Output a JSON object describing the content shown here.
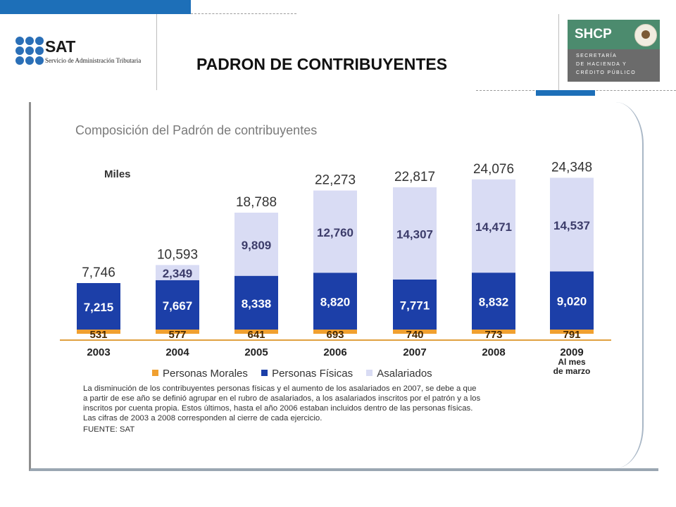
{
  "header": {
    "page_title": "PADRON DE CONTRIBUYENTES",
    "sat": {
      "name": "SAT",
      "subtitle": "Servicio de Administración Tributaria"
    },
    "shcp": {
      "name": "SHCP",
      "lines": [
        "SECRETARÍA",
        "DE HACIENDA Y",
        "CRÉDITO PÚBLICO"
      ]
    }
  },
  "chart_data": {
    "type": "bar",
    "stacked": true,
    "title": "Composición del Padrón de contribuyentes",
    "unit_label": "Miles",
    "categories": [
      "2003",
      "2004",
      "2005",
      "2006",
      "2007",
      "2008",
      "2009"
    ],
    "category_sublabels": [
      "",
      "",
      "",
      "",
      "",
      "",
      "Al mes de marzo"
    ],
    "series": [
      {
        "name": "Personas Morales",
        "color": "#f0a030",
        "values": [
          531,
          577,
          641,
          693,
          740,
          773,
          791
        ]
      },
      {
        "name": "Personas Físicas",
        "color": "#1c3fa8",
        "values": [
          7215,
          7667,
          8338,
          8820,
          7771,
          8832,
          9020
        ]
      },
      {
        "name": "Asalariados",
        "color": "#d9dcf4",
        "values": [
          null,
          2349,
          9809,
          12760,
          14307,
          14471,
          14537
        ]
      }
    ],
    "totals": [
      7746,
      10593,
      18788,
      22273,
      22817,
      24076,
      24348
    ],
    "value_labels": {
      "totals": [
        "7,746",
        "10,593",
        "18,788",
        "22,273",
        "22,817",
        "24,076",
        "24,348"
      ],
      "Personas Morales": [
        "531",
        "577",
        "641",
        "693",
        "740",
        "773",
        "791"
      ],
      "Personas Físicas": [
        "7,215",
        "7,667",
        "8,338",
        "8,820",
        "7,771",
        "8,832",
        "9,020"
      ],
      "Asalariados": [
        "",
        "2,349",
        "9,809",
        "12,760",
        "14,307",
        "14,471",
        "14,537"
      ]
    },
    "ylim": [
      0,
      26000
    ],
    "legend_position": "bottom",
    "grid": false,
    "notes": [
      "La disminución de los contribuyentes personas físicas y el aumento de los asalariados en 2007, se debe a que",
      "a partir de ese año se definió agrupar en el rubro de asalariados, a los asalariados inscritos por el patrón y a los",
      "inscritos por cuenta propia. Estos últimos, hasta el año 2006 estaban incluidos dentro de las personas físicas.",
      "Las cifras de 2003 a 2008 corresponden al cierre de cada ejercicio."
    ],
    "source": "FUENTE: SAT"
  }
}
